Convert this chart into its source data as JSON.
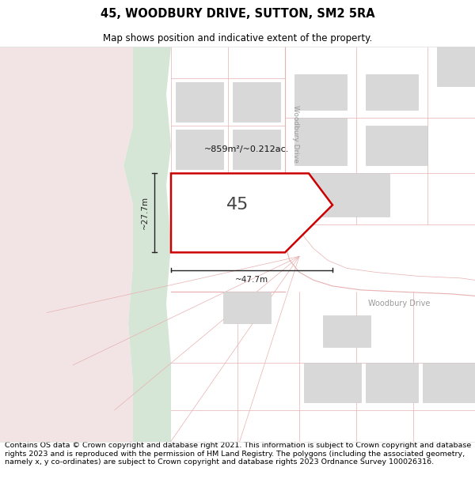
{
  "title": "45, WOODBURY DRIVE, SUTTON, SM2 5RA",
  "subtitle": "Map shows position and indicative extent of the property.",
  "footer": "Contains OS data © Crown copyright and database right 2021. This information is subject to Crown copyright and database rights 2023 and is reproduced with the permission of HM Land Registry. The polygons (including the associated geometry, namely x, y co-ordinates) are subject to Crown copyright and database rights 2023 Ordnance Survey 100026316.",
  "bg_color": "#ffffff",
  "map_bg": "#f5f5f5",
  "left_pink_color": "#f2e4e4",
  "green_strip_color": "#d6e6d6",
  "property_fill": "#ffffff",
  "property_stroke": "#cc0000",
  "property_label": "45",
  "area_label": "~859m²/~0.212ac.",
  "width_label": "~47.7m",
  "height_label": "~27.7m",
  "road_label_v": "Woodbury Drive",
  "road_label_h": "Woodbury Drive",
  "road_color": "#e8b0b0",
  "block_color": "#d8d8d8",
  "block_edge_color": "#cccccc",
  "dim_color": "#222222",
  "label_color": "#999999",
  "title_fontsize": 10.5,
  "subtitle_fontsize": 8.5,
  "footer_fontsize": 6.8
}
